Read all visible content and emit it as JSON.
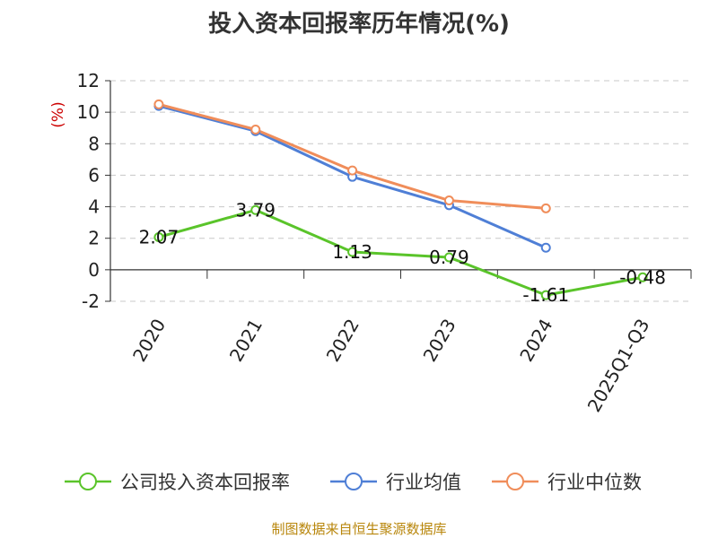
{
  "chart_data": {
    "type": "line",
    "title": "投入资本回报率历年情况(%)",
    "ylabel": "(%)",
    "xlabel": "",
    "ylim": [
      -2,
      12
    ],
    "yticks": [
      12,
      10,
      8,
      6,
      4,
      2,
      0,
      -2
    ],
    "categories": [
      "2020",
      "2021",
      "2022",
      "2023",
      "2024",
      "2025Q1-Q3"
    ],
    "grid": true,
    "legend_position": "bottom",
    "series": [
      {
        "name": "公司投入资本回报率",
        "color": "#5ac42a",
        "values": [
          2.07,
          3.79,
          1.13,
          0.79,
          -1.61,
          -0.48
        ],
        "labels": [
          "2.07",
          "3.79",
          "1.13",
          "0.79",
          "-1.61",
          "-0.48"
        ]
      },
      {
        "name": "行业均值",
        "color": "#4f7fd6",
        "values": [
          10.4,
          8.8,
          5.9,
          4.1,
          1.4,
          null
        ]
      },
      {
        "name": "行业中位数",
        "color": "#f08d5a",
        "values": [
          10.5,
          8.9,
          6.3,
          4.4,
          3.9,
          null
        ]
      }
    ]
  },
  "footer": {
    "source": "制图数据来自恒生聚源数据库"
  }
}
